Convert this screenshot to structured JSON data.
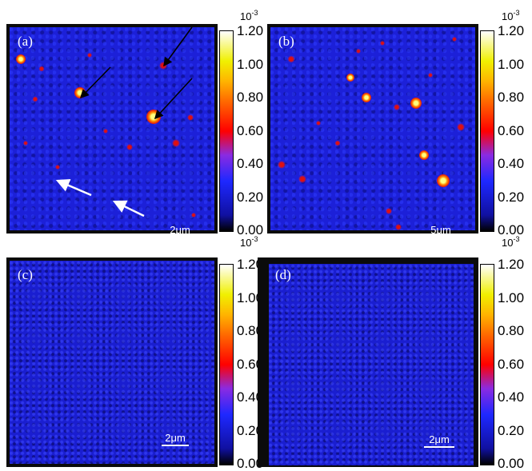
{
  "figure": {
    "panels": [
      {
        "label": "(a)",
        "scale": "2μm"
      },
      {
        "label": "(b)",
        "scale": "5μm"
      },
      {
        "label": "(c)",
        "scale": "2μm"
      },
      {
        "label": "(d)",
        "scale": "2μm"
      }
    ],
    "colorbar": {
      "exponent_base": "10",
      "exponent_power": "-3",
      "ticks": [
        "1.20",
        "1.00",
        "0.80",
        "0.60",
        "0.40",
        "0.20",
        "0.00"
      ],
      "min": 0.0,
      "max": 1.2
    },
    "colors": {
      "background_map": "#1c20d8",
      "hotspot_core": "#ffff80",
      "hotspot_mid": "#ff8c00",
      "hotspot_edge": "#e01010",
      "arrow_black": "#000000",
      "arrow_white": "#ffffff"
    }
  }
}
